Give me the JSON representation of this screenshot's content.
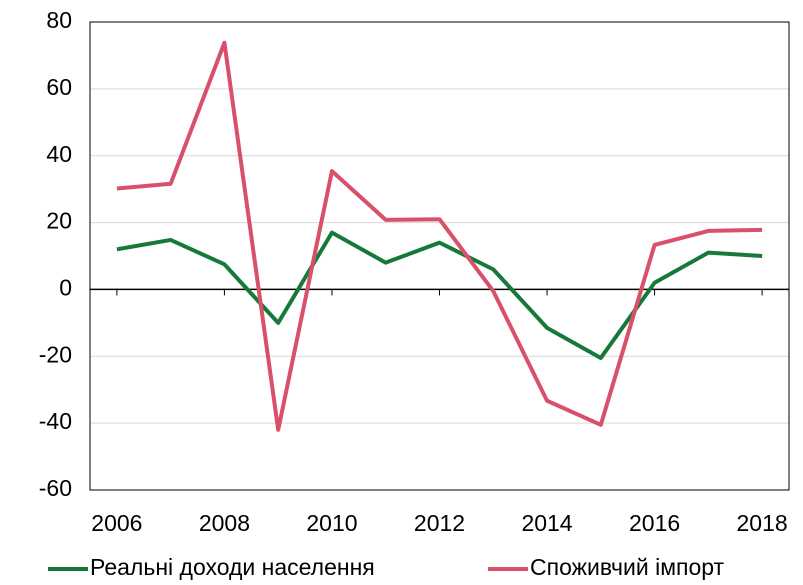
{
  "chart_data": {
    "type": "line",
    "x": [
      2006,
      2007,
      2008,
      2009,
      2010,
      2011,
      2012,
      2013,
      2014,
      2015,
      2016,
      2017,
      2018
    ],
    "series": [
      {
        "name": "Реальні доходи населення",
        "color": "#16793a",
        "values": [
          12,
          14.8,
          7.5,
          -10,
          17,
          8,
          14,
          6,
          -11.5,
          -20.5,
          2,
          11,
          10
        ]
      },
      {
        "name": "Споживчий імпорт",
        "color": "#d9506a",
        "values": [
          30.2,
          31.6,
          73.8,
          -42,
          35.4,
          20.8,
          21,
          -0.5,
          -33.3,
          -40.5,
          13.3,
          17.5,
          17.8
        ]
      }
    ],
    "xlim": [
      2005.5,
      2018.5
    ],
    "xticks": [
      2006,
      2008,
      2010,
      2012,
      2014,
      2016,
      2018
    ],
    "ylim": [
      -60,
      80
    ],
    "yticks": [
      -60,
      -40,
      -20,
      0,
      20,
      40,
      60,
      80
    ],
    "grid": true,
    "legend": "bottom"
  }
}
